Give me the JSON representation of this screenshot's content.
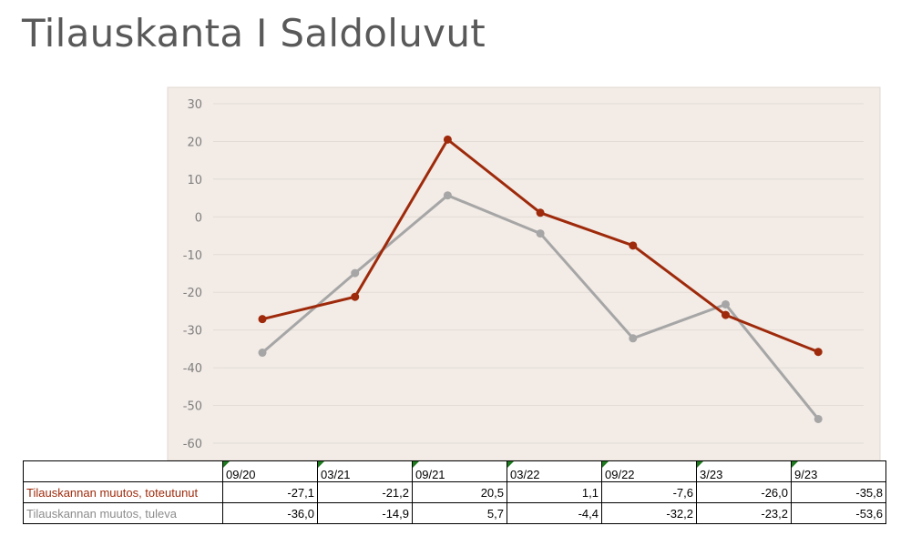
{
  "title": "Tilauskanta I Saldoluvut",
  "colors": {
    "plot_bg": "#f2ebe6",
    "series_1": "#9e2a0b",
    "series_2": "#a6a6a6",
    "grid": "#e3dcd6",
    "tick_text": "#7f7f7f"
  },
  "chart_data": {
    "type": "line",
    "categories": [
      "09/20",
      "03/21",
      "09/21",
      "03/22",
      "09/22",
      "3/23",
      "9/23"
    ],
    "series": [
      {
        "name": "Tilauskannan muutos, toteutunut",
        "values": [
          -27.1,
          -21.2,
          20.5,
          1.1,
          -7.6,
          -26.0,
          -35.8
        ]
      },
      {
        "name": "Tilauskannan muutos, tuleva",
        "values": [
          -36.0,
          -14.9,
          5.7,
          -4.4,
          -32.2,
          -23.2,
          -53.6
        ]
      }
    ],
    "ylim": [
      -60,
      30
    ],
    "yticks": [
      "30",
      "20",
      "10",
      "0",
      "-10",
      "-20",
      "-30",
      "-40",
      "-50",
      "-60"
    ],
    "grid": true,
    "legend": "table-below"
  },
  "table": {
    "headers": [
      "09/20",
      "03/21",
      "09/21",
      "03/22",
      "09/22",
      "3/23",
      "9/23"
    ],
    "rows": [
      {
        "label": "Tilauskannan muutos, toteutunut",
        "cells": [
          "-27,1",
          "-21,2",
          "20,5",
          "1,1",
          "-7,6",
          "-26,0",
          "-35,8"
        ]
      },
      {
        "label": "Tilauskannan muutos, tuleva",
        "cells": [
          "-36,0",
          "-14,9",
          "5,7",
          "-4,4",
          "-32,2",
          "-23,2",
          "-53,6"
        ]
      }
    ]
  }
}
